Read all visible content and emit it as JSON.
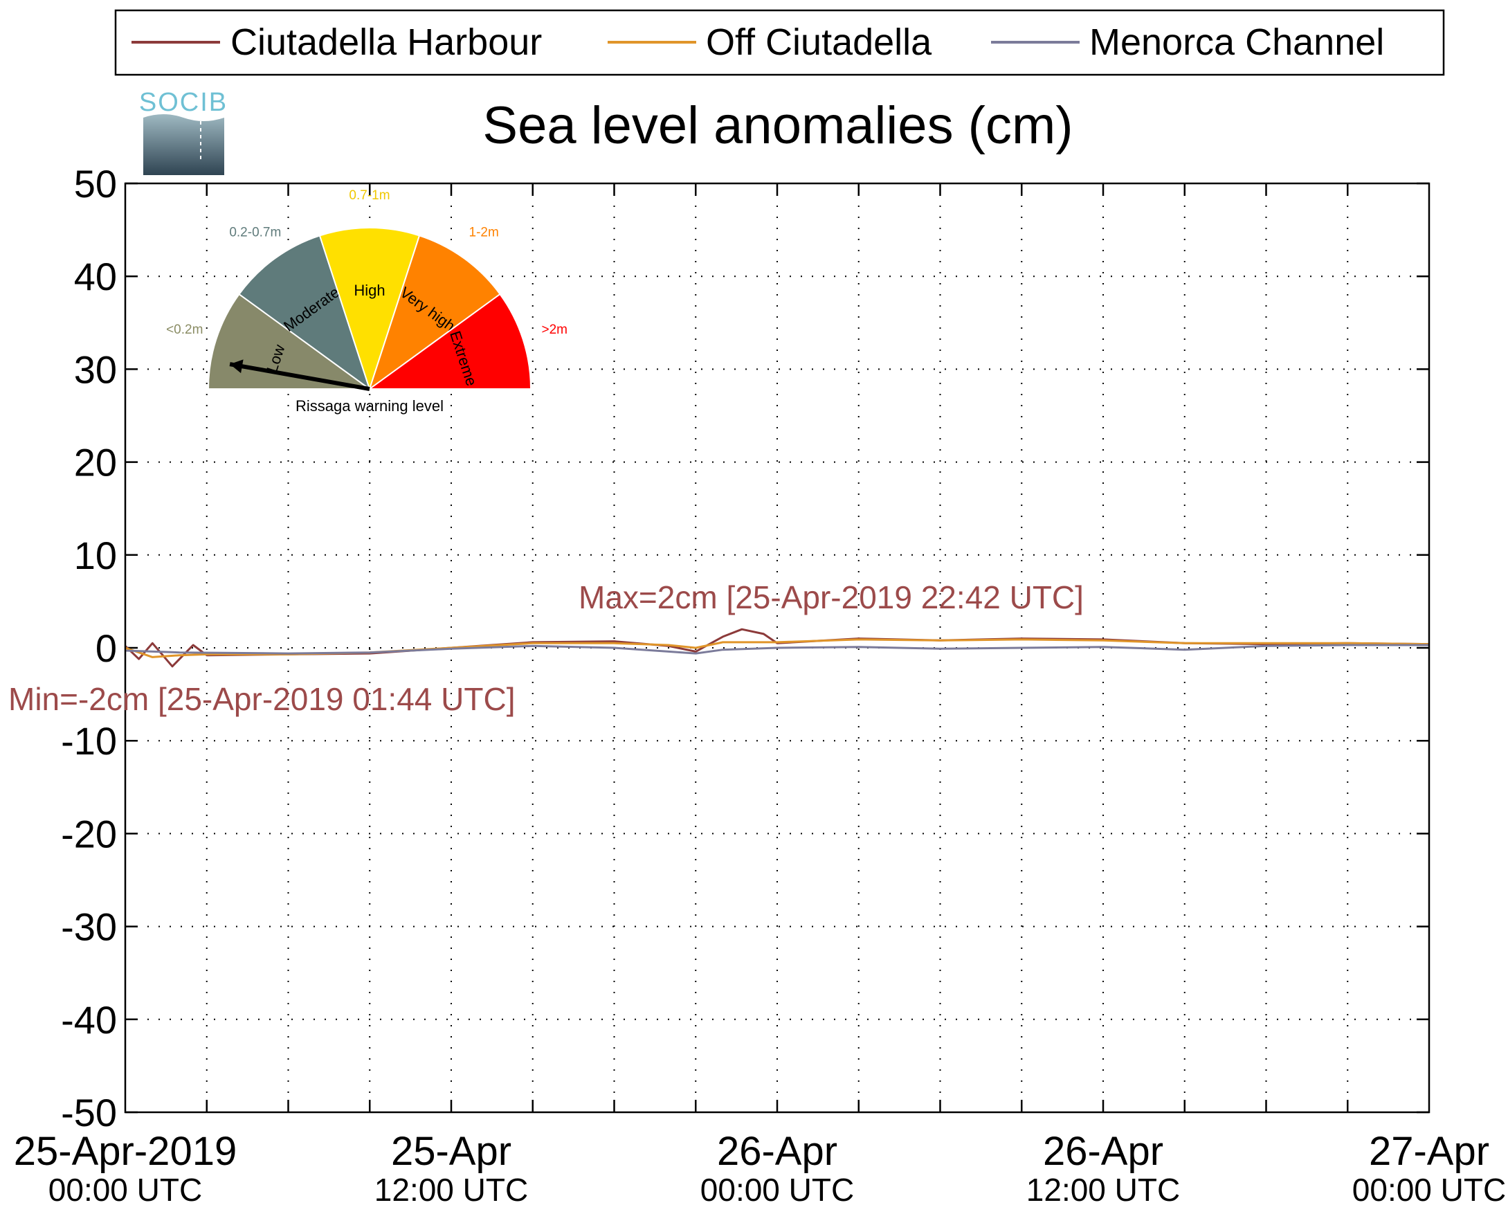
{
  "chart_data": {
    "type": "line",
    "title": "Sea level anomalies (cm)",
    "ylim": [
      -50,
      50
    ],
    "yticks": [
      -50,
      -40,
      -30,
      -20,
      -10,
      0,
      10,
      20,
      30,
      40,
      50
    ],
    "xlim": [
      "2019-04-25 00:00",
      "2019-04-27 00:00"
    ],
    "xticks": [
      {
        "at": "2019-04-25 00:00",
        "line1": "25-Apr-2019",
        "line2": "00:00 UTC"
      },
      {
        "at": "2019-04-25 12:00",
        "line1": "25-Apr",
        "line2": "12:00 UTC"
      },
      {
        "at": "2019-04-26 00:00",
        "line1": "26-Apr",
        "line2": "00:00 UTC"
      },
      {
        "at": "2019-04-26 12:00",
        "line1": "26-Apr",
        "line2": "12:00 UTC"
      },
      {
        "at": "2019-04-27 00:00",
        "line1": "27-Apr",
        "line2": "00:00 UTC"
      }
    ],
    "grid": true,
    "legend_position": "top",
    "series": [
      {
        "name": "Ciutadella Harbour",
        "color": "#8c3a3a",
        "x": [
          "2019-04-25 00:00",
          "2019-04-25 00:30",
          "2019-04-25 01:00",
          "2019-04-25 01:44",
          "2019-04-25 02:30",
          "2019-04-25 03:00",
          "2019-04-25 06:00",
          "2019-04-25 09:00",
          "2019-04-25 12:00",
          "2019-04-25 15:00",
          "2019-04-25 18:00",
          "2019-04-25 20:00",
          "2019-04-25 21:00",
          "2019-04-25 22:00",
          "2019-04-25 22:42",
          "2019-04-25 23:30",
          "2019-04-26 00:00",
          "2019-04-26 03:00",
          "2019-04-26 06:00",
          "2019-04-26 09:00",
          "2019-04-26 12:00",
          "2019-04-26 15:00",
          "2019-04-26 18:00",
          "2019-04-26 21:00",
          "2019-04-27 00:00"
        ],
        "y": [
          0.2,
          -1.2,
          0.5,
          -2.0,
          0.3,
          -0.8,
          -0.7,
          -0.6,
          0.0,
          0.6,
          0.7,
          0.2,
          -0.4,
          1.2,
          2.0,
          1.5,
          0.5,
          1.0,
          0.8,
          1.0,
          0.9,
          0.5,
          0.4,
          0.5,
          0.4
        ]
      },
      {
        "name": "Off Ciutadella",
        "color": "#e0952a",
        "x": [
          "2019-04-25 00:00",
          "2019-04-25 01:00",
          "2019-04-25 02:00",
          "2019-04-25 03:00",
          "2019-04-25 06:00",
          "2019-04-25 09:00",
          "2019-04-25 12:00",
          "2019-04-25 15:00",
          "2019-04-25 18:00",
          "2019-04-25 20:00",
          "2019-04-25 21:00",
          "2019-04-25 22:00",
          "2019-04-26 00:00",
          "2019-04-26 03:00",
          "2019-04-26 06:00",
          "2019-04-26 09:00",
          "2019-04-26 12:00",
          "2019-04-26 15:00",
          "2019-04-26 18:00",
          "2019-04-26 21:00",
          "2019-04-27 00:00"
        ],
        "y": [
          0.0,
          -1.0,
          -0.8,
          -0.7,
          -0.7,
          -0.5,
          0.0,
          0.5,
          0.5,
          0.3,
          0.0,
          0.6,
          0.6,
          0.9,
          0.8,
          0.9,
          0.8,
          0.5,
          0.5,
          0.5,
          0.4
        ]
      },
      {
        "name": "Menorca Channel",
        "color": "#7b7b9a",
        "x": [
          "2019-04-25 00:00",
          "2019-04-25 02:00",
          "2019-04-25 06:00",
          "2019-04-25 09:00",
          "2019-04-25 12:00",
          "2019-04-25 15:00",
          "2019-04-25 18:00",
          "2019-04-25 20:00",
          "2019-04-25 21:00",
          "2019-04-25 22:00",
          "2019-04-26 00:00",
          "2019-04-26 03:00",
          "2019-04-26 06:00",
          "2019-04-26 09:00",
          "2019-04-26 12:00",
          "2019-04-26 15:00",
          "2019-04-26 18:00",
          "2019-04-26 21:00",
          "2019-04-27 00:00"
        ],
        "y": [
          -0.3,
          -0.5,
          -0.6,
          -0.5,
          -0.1,
          0.2,
          0.0,
          -0.4,
          -0.6,
          -0.2,
          0.0,
          0.1,
          -0.1,
          0.0,
          0.1,
          -0.2,
          0.2,
          0.3,
          0.3
        ]
      }
    ],
    "annotations": [
      {
        "text": "Max=2cm [25-Apr-2019 22:42 UTC]",
        "color": "#9c4a4a"
      },
      {
        "text": "Min=-2cm [25-Apr-2019 01:44 UTC]",
        "color": "#9c4a4a"
      }
    ]
  },
  "logo": {
    "text": "SOCIB"
  },
  "gauge": {
    "title": "Rissaga warning level",
    "needle_level": "Low",
    "segments": [
      {
        "label": "Low",
        "range": "<0.2m",
        "color": "#87896a",
        "range_color": "#8a8c64"
      },
      {
        "label": "Moderate",
        "range": "0.2-0.7m",
        "color": "#5f7b7b",
        "range_color": "#5f7b7b"
      },
      {
        "label": "High",
        "range": "0.7-1m",
        "color": "#ffe000",
        "range_color": "#f0c800"
      },
      {
        "label": "Very high",
        "range": "1-2m",
        "color": "#ff8200",
        "range_color": "#ff8200"
      },
      {
        "label": "Extreme",
        "range": ">2m",
        "color": "#ff0000",
        "range_color": "#ff0000"
      }
    ]
  }
}
